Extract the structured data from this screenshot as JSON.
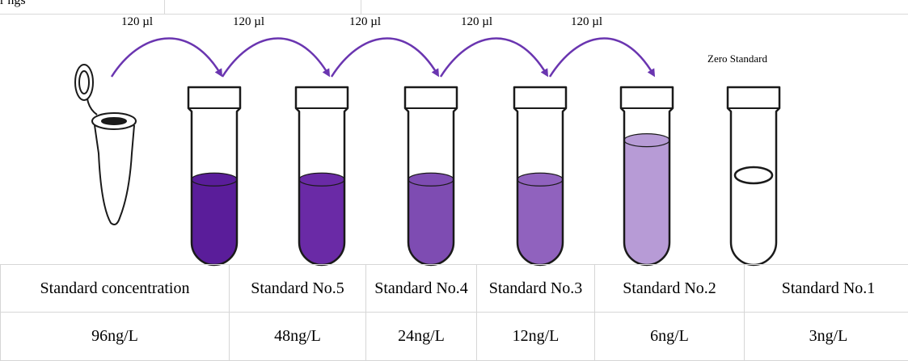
{
  "top_fragment": "r  ngs",
  "transfers": [
    {
      "volume": "120 µl"
    },
    {
      "volume": "120 µl"
    },
    {
      "volume": "120 µl"
    },
    {
      "volume": "120 µl"
    },
    {
      "volume": "120 µl"
    }
  ],
  "zero_label": "Zero Standard",
  "tubes": [
    {
      "fill": 0.48,
      "color": "#5a1d9a"
    },
    {
      "fill": 0.48,
      "color": "#6a2aa6"
    },
    {
      "fill": 0.48,
      "color": "#7e4cb2"
    },
    {
      "fill": 0.48,
      "color": "#9062be"
    },
    {
      "fill": 0.78,
      "color": "#b79bd6"
    },
    {
      "fill": 0.0,
      "color": "#ffffff"
    }
  ],
  "colors": {
    "arrow": "#6a35b0",
    "outline": "#1a1a1a"
  },
  "table": {
    "headers": [
      "Standard concentration",
      "Standard No.5",
      "Standard No.4",
      "Standard No.3",
      "Standard No.2",
      "Standard No.1"
    ],
    "values": [
      "96ng/L",
      "48ng/L",
      "24ng/L",
      "12ng/L",
      "6ng/L",
      "3ng/L"
    ]
  }
}
